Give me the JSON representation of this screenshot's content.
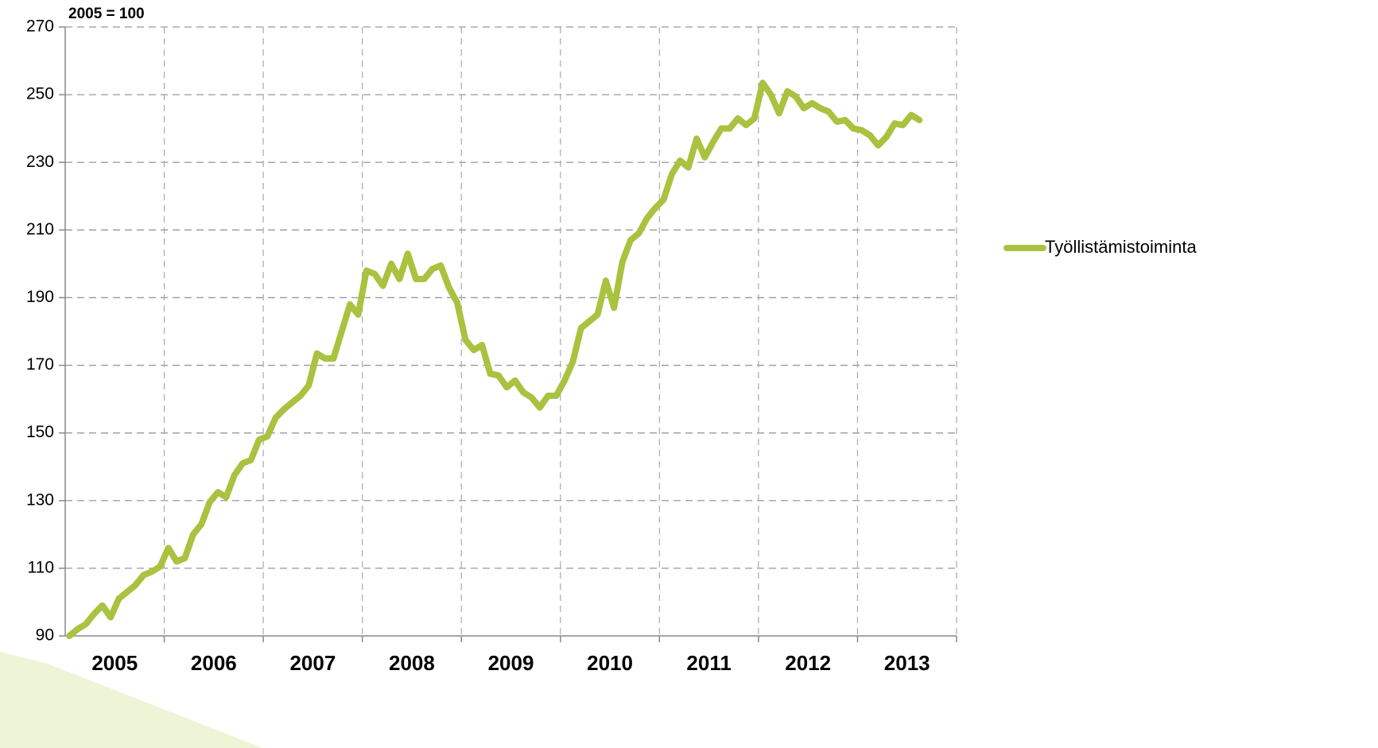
{
  "chart_data": {
    "type": "line",
    "subtitle": "2005 = 100",
    "categories": [
      null,
      null,
      null,
      null,
      null,
      null,
      "2005",
      null,
      null,
      null,
      null,
      null,
      null,
      null,
      null,
      null,
      null,
      null,
      "2006",
      null,
      null,
      null,
      null,
      null,
      null,
      null,
      null,
      null,
      null,
      null,
      "2007",
      null,
      null,
      null,
      null,
      null,
      null,
      null,
      null,
      null,
      null,
      null,
      "2008",
      null,
      null,
      null,
      null,
      null,
      null,
      null,
      null,
      null,
      null,
      null,
      "2009",
      null,
      null,
      null,
      null,
      null,
      null,
      null,
      null,
      null,
      null,
      null,
      "2010",
      null,
      null,
      null,
      null,
      null,
      null,
      null,
      null,
      null,
      null,
      null,
      "2011",
      null,
      null,
      null,
      null,
      null,
      null,
      null,
      null,
      null,
      null,
      null,
      "2012",
      null,
      null,
      null,
      null,
      null,
      null,
      null,
      null,
      null,
      null,
      null,
      "2013",
      null
    ],
    "series": [
      {
        "name": "Työllistämistoiminta",
        "color": "#a9c23f",
        "values": [
          90,
          92,
          93.5,
          96.5,
          99,
          95.5,
          101,
          103,
          105,
          108,
          109,
          110.5,
          116,
          112,
          113,
          120,
          123,
          129.5,
          132.5,
          131,
          137.5,
          141,
          142,
          148,
          149,
          154.5,
          157,
          159,
          161,
          164,
          173.5,
          172,
          172,
          180,
          188,
          185,
          198,
          197,
          193.5,
          200,
          195.5,
          203,
          195.5,
          195.5,
          198.5,
          199.5,
          193,
          188.5,
          177.5,
          174.5,
          176,
          167.5,
          167,
          163.5,
          165.5,
          162,
          160.5,
          157.5,
          161,
          161,
          165.5,
          171,
          181,
          183,
          185,
          195,
          187,
          200.5,
          207,
          209,
          213.5,
          216.5,
          219,
          226.5,
          230.5,
          228.5,
          237,
          231.5,
          236,
          240,
          240,
          243,
          241,
          243,
          253.5,
          250,
          244.5,
          251,
          249.5,
          246,
          247.5,
          246,
          245,
          242,
          242.5,
          240,
          239.5,
          238,
          235,
          237.5,
          241.5,
          241,
          244,
          242.5
        ]
      }
    ],
    "ylim": [
      90,
      270
    ],
    "yticks": [
      90,
      110,
      130,
      150,
      170,
      190,
      210,
      230,
      250,
      270
    ],
    "grid": true,
    "legend": "right"
  }
}
